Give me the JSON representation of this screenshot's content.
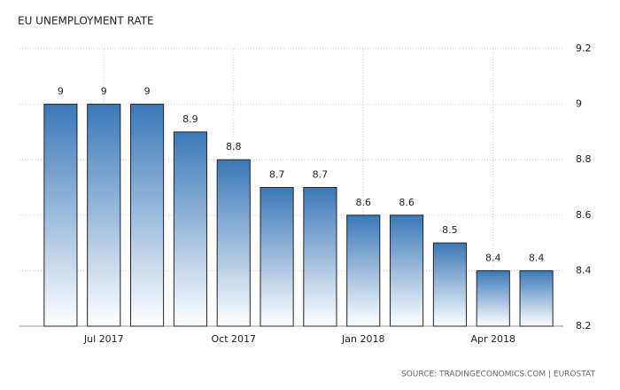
{
  "chart_data": {
    "type": "bar",
    "title": "EU UNEMPLOYMENT RATE",
    "categories": [
      null,
      "Jul 2017",
      null,
      null,
      "Oct 2017",
      null,
      null,
      "Jan 2018",
      null,
      null,
      "Apr 2018",
      null
    ],
    "values": [
      9,
      9,
      9,
      8.9,
      8.8,
      8.7,
      8.7,
      8.6,
      8.6,
      8.5,
      8.4,
      8.4
    ],
    "color": "#3a78b8",
    "ylim": [
      8.2,
      9.2
    ],
    "yticks": [
      8.2,
      8.4,
      8.6,
      8.8,
      9,
      9.2
    ],
    "grid": true,
    "source": "SOURCE: TRADINGECONOMICS.COM | EUROSTAT"
  }
}
